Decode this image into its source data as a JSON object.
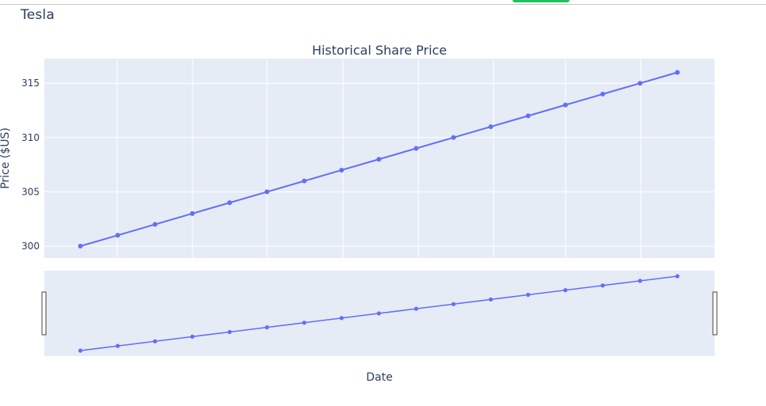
{
  "page": {
    "heading": "Tesla"
  },
  "colors": {
    "plot_bg": "#e5ecf6",
    "grid": "#ffffff",
    "series": "#636efa",
    "text": "#2a3f5f",
    "accent": "#21c25e"
  },
  "chart_data": {
    "type": "line",
    "title": "Historical Share Price",
    "xlabel": "Date",
    "ylabel": "Price ($US)",
    "ylim": [
      298.5,
      316.9
    ],
    "yticks": [
      300,
      305,
      310,
      315
    ],
    "grid": true,
    "mode": "lines+markers",
    "range_slider": true,
    "series": [
      {
        "values": [
          300,
          301,
          302,
          303,
          304,
          305,
          306,
          307,
          308,
          309,
          310,
          311,
          312,
          313,
          314,
          315,
          316
        ]
      }
    ]
  }
}
